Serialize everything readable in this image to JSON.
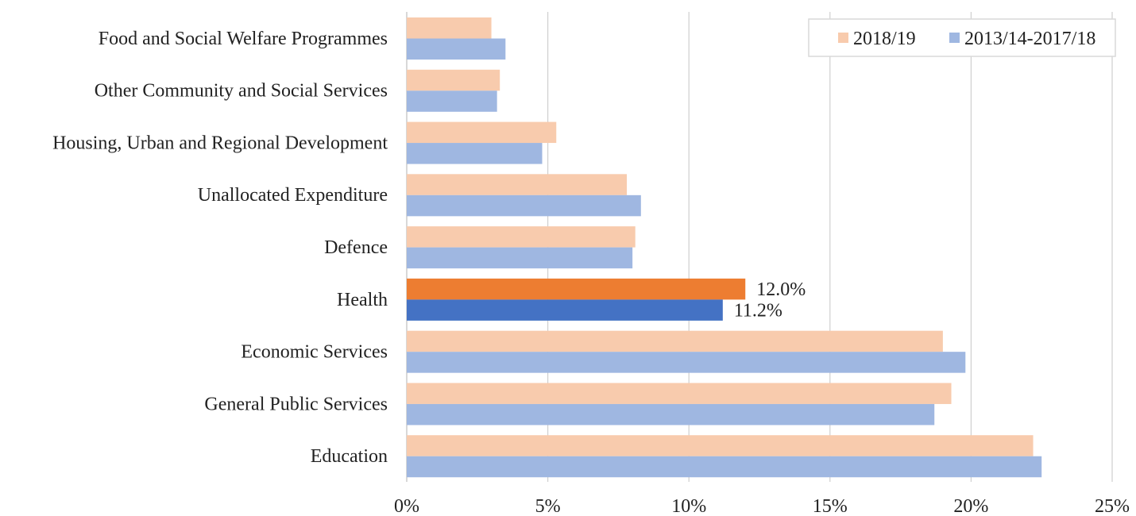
{
  "chart_data": {
    "type": "bar",
    "orientation": "horizontal",
    "title": "",
    "xlabel": "",
    "ylabel": "",
    "xlim": [
      0,
      25
    ],
    "x_ticks": [
      0,
      5,
      10,
      15,
      20,
      25
    ],
    "x_tick_labels": [
      "0%",
      "5%",
      "10%",
      "15%",
      "20%",
      "25%"
    ],
    "grid": "vertical",
    "legend_position": "top-right",
    "categories": [
      "Food and Social Welfare Programmes",
      "Other Community and Social Services",
      "Housing, Urban and Regional Development",
      "Unallocated Expenditure",
      "Defence",
      "Health",
      "Economic Services",
      "General Public Services",
      "Education"
    ],
    "series": [
      {
        "name": "2018/19",
        "color": "#f8cbad",
        "highlight_color": "#ed7d31",
        "values": [
          3.0,
          3.3,
          5.3,
          7.8,
          8.1,
          12.0,
          19.0,
          19.3,
          22.2
        ]
      },
      {
        "name": "2013/14-2017/18",
        "color": "#9fb7e1",
        "highlight_color": "#4472c4",
        "values": [
          3.5,
          3.2,
          4.8,
          8.3,
          8.0,
          11.2,
          19.8,
          18.7,
          22.5
        ]
      }
    ],
    "highlight_category": "Health",
    "data_labels": [
      {
        "category": "Health",
        "series": "2018/19",
        "text": "12.0%"
      },
      {
        "category": "Health",
        "series": "2013/14-2017/18",
        "text": "11.2%"
      }
    ]
  }
}
